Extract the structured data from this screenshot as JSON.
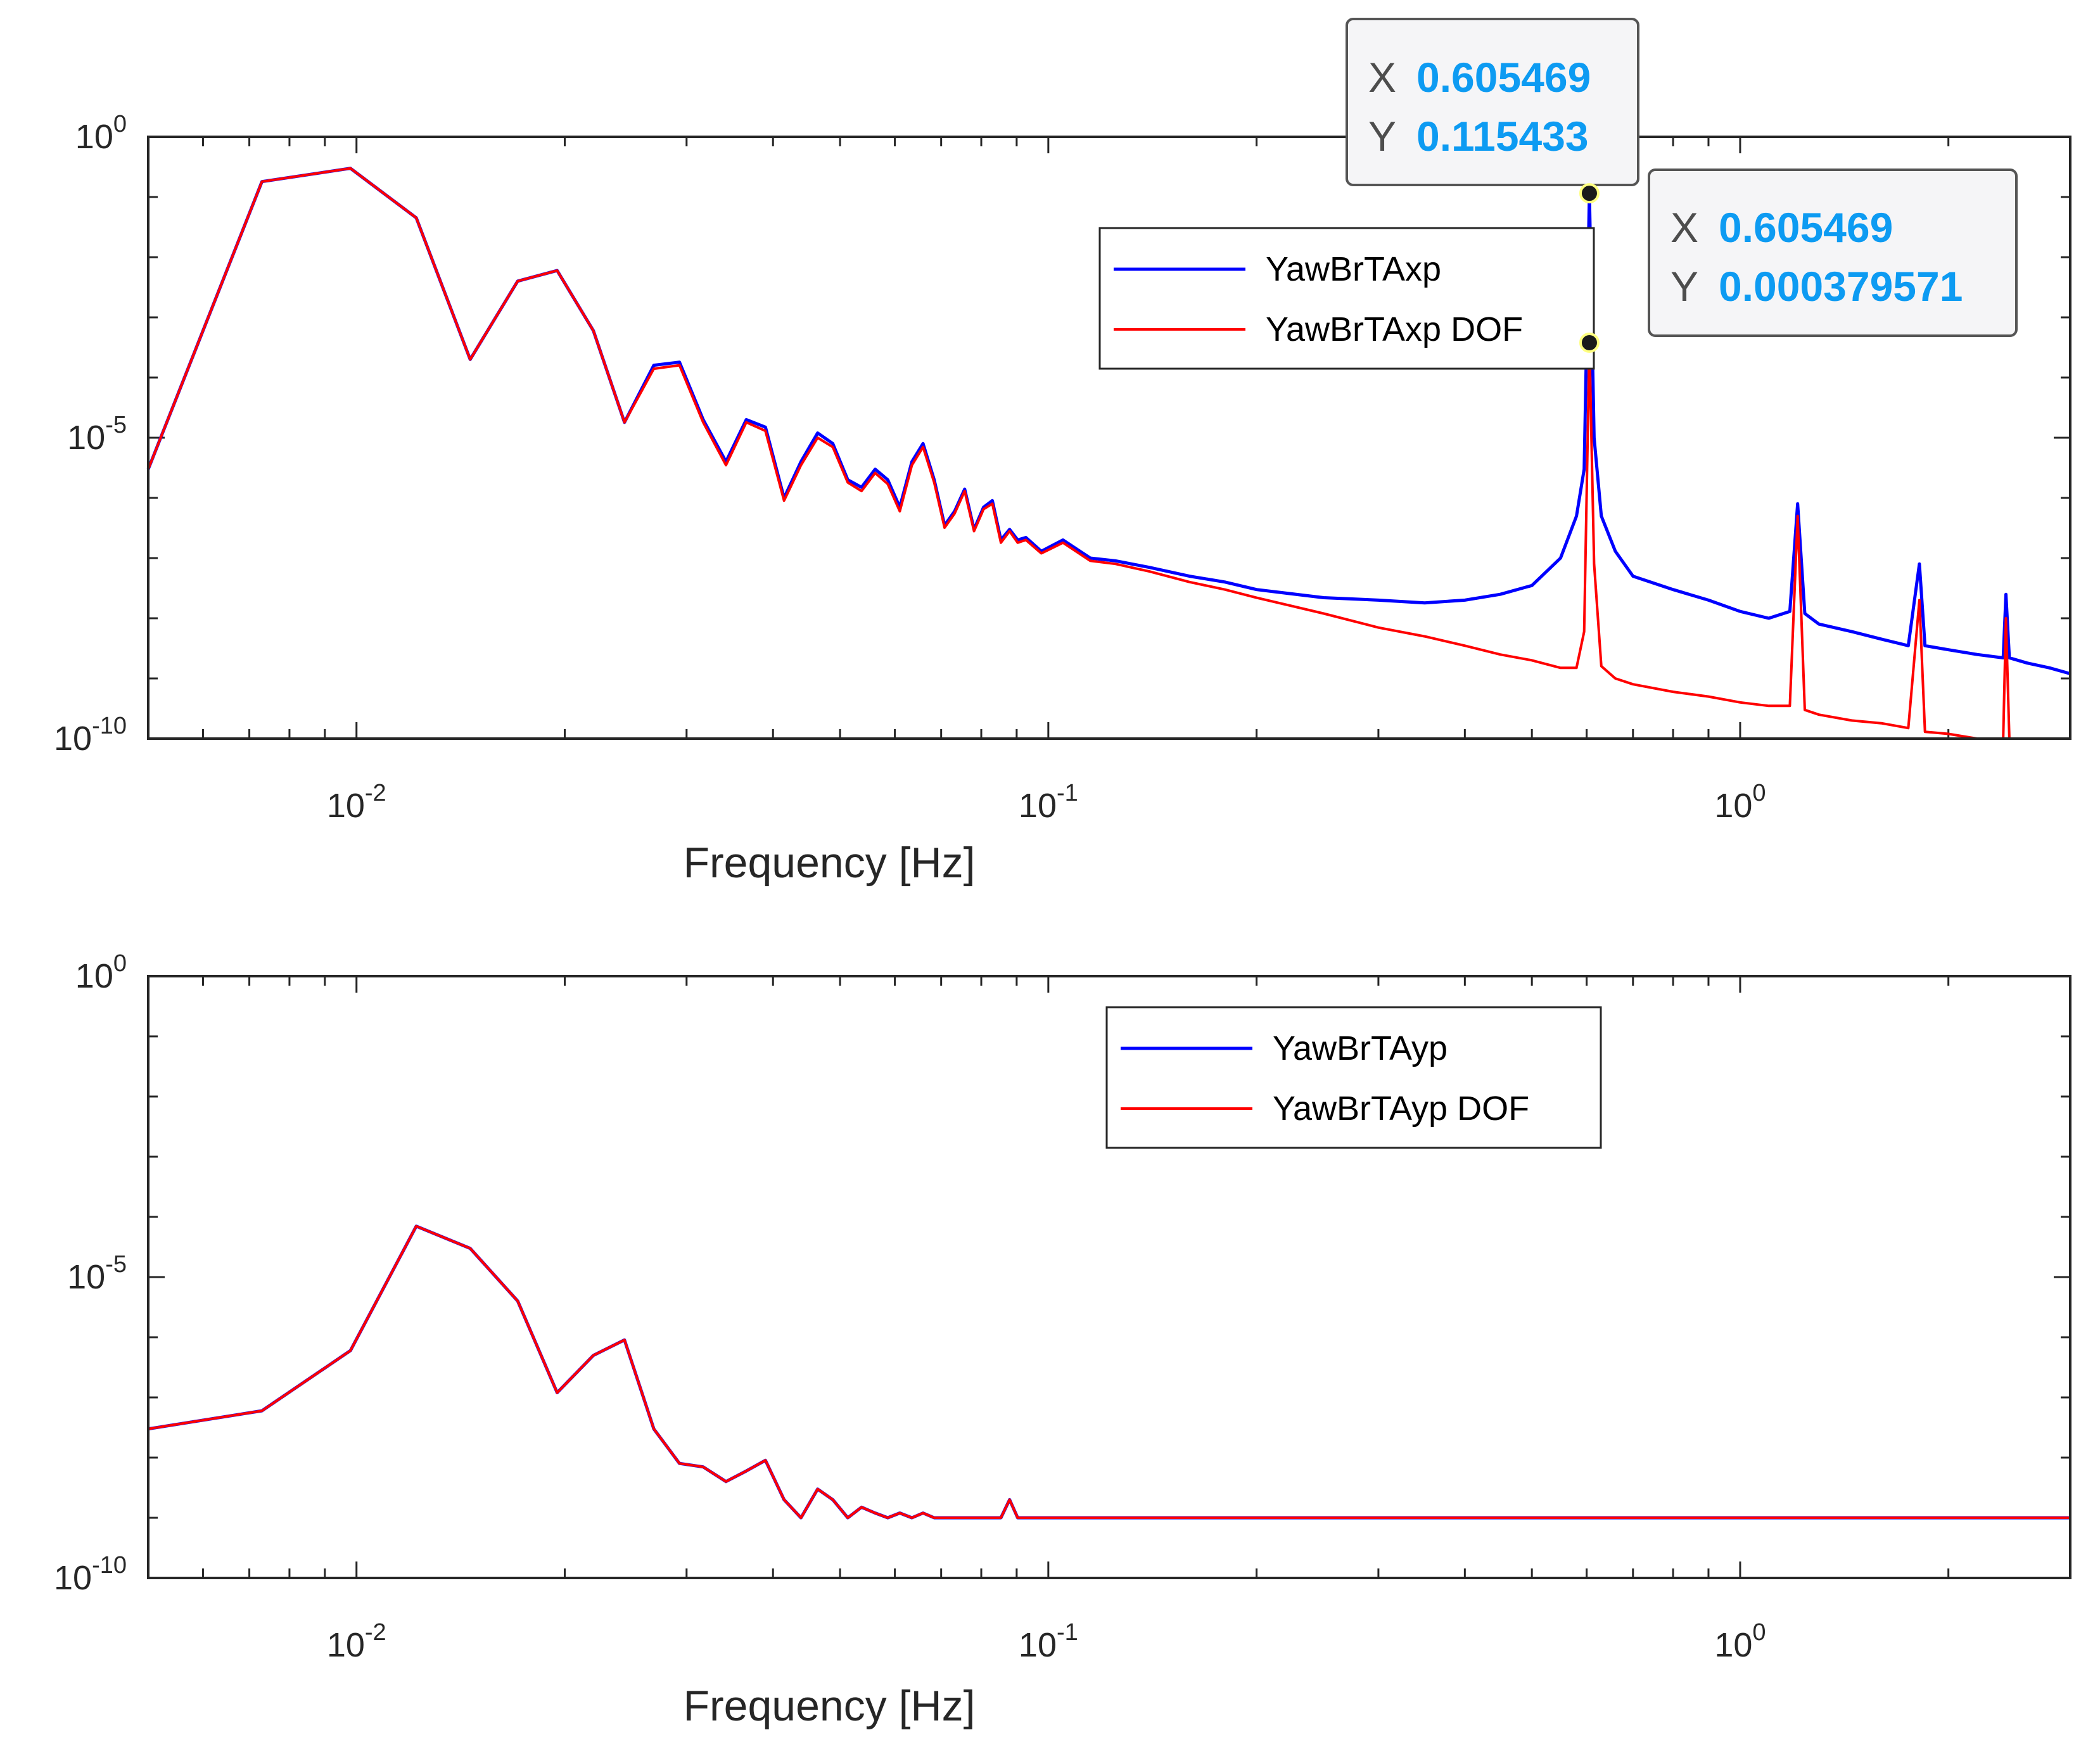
{
  "chart_data": [
    {
      "type": "line",
      "xscale": "log",
      "yscale": "log",
      "xlim": [
        0.005,
        3.0
      ],
      "ylim": [
        1e-10,
        1
      ],
      "xlabel": "Frequency [Hz]",
      "ylabel": "",
      "x_ticks": [
        {
          "value": 0.01,
          "base": "10",
          "exp": "-2"
        },
        {
          "value": 0.1,
          "base": "10",
          "exp": "-1"
        },
        {
          "value": 1,
          "base": "10",
          "exp": "0"
        }
      ],
      "y_ticks": [
        {
          "value": 1,
          "base": "10",
          "exp": "0"
        },
        {
          "value": 1e-05,
          "base": "10",
          "exp": "-5"
        },
        {
          "value": 1e-10,
          "base": "10",
          "exp": "-10"
        }
      ],
      "legend_position": "upper-right",
      "series": [
        {
          "name": "YawBrTAxp",
          "color": "#0000ff",
          "x": [
            0.005,
            0.0073,
            0.0098,
            0.0122,
            0.0146,
            0.0171,
            0.0195,
            0.022,
            0.0244,
            0.0269,
            0.0293,
            0.0317,
            0.0342,
            0.0366,
            0.039,
            0.0415,
            0.0439,
            0.0464,
            0.0488,
            0.0513,
            0.0537,
            0.0562,
            0.0586,
            0.061,
            0.0635,
            0.0659,
            0.0684,
            0.0708,
            0.0732,
            0.0757,
            0.0781,
            0.0806,
            0.083,
            0.0854,
            0.0879,
            0.0903,
            0.0928,
            0.0977,
            0.105,
            0.115,
            0.125,
            0.14,
            0.16,
            0.18,
            0.2,
            0.25,
            0.3,
            0.35,
            0.4,
            0.45,
            0.5,
            0.55,
            0.58,
            0.595,
            0.605469,
            0.615,
            0.63,
            0.66,
            0.7,
            0.8,
            0.9,
            1.0,
            1.1,
            1.18,
            1.211,
            1.24,
            1.3,
            1.45,
            1.6,
            1.75,
            1.816,
            1.85,
            2.0,
            2.2,
            2.4,
            2.422,
            2.45,
            2.6,
            2.8,
            3.0
          ],
          "y": [
            3e-06,
            0.18,
            0.3,
            0.045,
            0.0002,
            0.004,
            0.006,
            0.0006,
            1.8e-05,
            0.00016,
            0.00018,
            2e-05,
            4e-06,
            2e-05,
            1.5e-05,
            1e-06,
            4e-06,
            1.2e-05,
            8e-06,
            2e-06,
            1.5e-06,
            3e-06,
            2e-06,
            7e-07,
            4e-06,
            8e-06,
            2e-06,
            3.5e-07,
            6e-07,
            1.4e-06,
            3e-07,
            7e-07,
            9e-07,
            2e-07,
            3e-07,
            2e-07,
            2.2e-07,
            1.3e-07,
            2e-07,
            1e-07,
            9e-08,
            7e-08,
            5e-08,
            4e-08,
            3e-08,
            2.2e-08,
            2e-08,
            1.8e-08,
            2e-08,
            2.5e-08,
            3.5e-08,
            1e-07,
            5e-07,
            3e-06,
            0.115433,
            1e-05,
            5e-07,
            1.3e-07,
            5e-08,
            3e-08,
            2e-08,
            1.3e-08,
            1e-08,
            1.3e-08,
            8e-07,
            1.2e-08,
            8e-09,
            6e-09,
            4.5e-09,
            3.5e-09,
            8e-08,
            3.5e-09,
            3e-09,
            2.5e-09,
            2.2e-09,
            2.5e-08,
            2.2e-09,
            1.8e-09,
            1.5e-09,
            1.2e-09
          ]
        },
        {
          "name": "YawBrTAxp DOF",
          "color": "#ff0000",
          "x": [
            0.005,
            0.0073,
            0.0098,
            0.0122,
            0.0146,
            0.0171,
            0.0195,
            0.022,
            0.0244,
            0.0269,
            0.0293,
            0.0317,
            0.0342,
            0.0366,
            0.039,
            0.0415,
            0.0439,
            0.0464,
            0.0488,
            0.0513,
            0.0537,
            0.0562,
            0.0586,
            0.061,
            0.0635,
            0.0659,
            0.0684,
            0.0708,
            0.0732,
            0.0757,
            0.0781,
            0.0806,
            0.083,
            0.0854,
            0.0879,
            0.0903,
            0.0928,
            0.0977,
            0.105,
            0.115,
            0.125,
            0.14,
            0.16,
            0.18,
            0.2,
            0.25,
            0.3,
            0.35,
            0.4,
            0.45,
            0.5,
            0.55,
            0.58,
            0.595,
            0.605469,
            0.615,
            0.63,
            0.66,
            0.7,
            0.8,
            0.9,
            1.0,
            1.1,
            1.18,
            1.211,
            1.24,
            1.3,
            1.45,
            1.6,
            1.75,
            1.816,
            1.85,
            2.0,
            2.2,
            2.4,
            2.422,
            2.45,
            2.6,
            2.8,
            3.0
          ],
          "y": [
            3e-06,
            0.18,
            0.3,
            0.045,
            0.0002,
            0.004,
            0.006,
            0.0006,
            1.8e-05,
            0.00014,
            0.00016,
            1.8e-05,
            3.5e-06,
            1.8e-05,
            1.3e-05,
            9e-07,
            3.5e-06,
            1e-05,
            7e-06,
            1.8e-06,
            1.3e-06,
            2.6e-06,
            1.7e-06,
            6e-07,
            3.5e-06,
            7e-06,
            1.8e-06,
            3.2e-07,
            5.5e-07,
            1.3e-06,
            2.8e-07,
            6.5e-07,
            8e-07,
            1.8e-07,
            2.8e-07,
            1.8e-07,
            2e-07,
            1.2e-07,
            1.8e-07,
            9e-08,
            8e-08,
            6e-08,
            4e-08,
            3e-08,
            2.2e-08,
            1.2e-08,
            7e-09,
            5e-09,
            3.5e-09,
            2.5e-09,
            2e-09,
            1.5e-09,
            1.5e-09,
            6e-09,
            0.000379571,
            8e-08,
            1.6e-09,
            1e-09,
            8e-10,
            6e-10,
            5e-10,
            4e-10,
            3.5e-10,
            3.5e-10,
            5e-07,
            3e-10,
            2.5e-10,
            2e-10,
            1.8e-10,
            1.5e-10,
            2e-08,
            1.3e-10,
            1.2e-10,
            1e-10,
            9e-11,
            1e-08,
            9e-11,
            8e-11,
            7e-11,
            6e-11
          ]
        }
      ],
      "datatips": [
        {
          "x_label": "X",
          "x_value": "0.605469",
          "y_label": "Y",
          "y_value": "0.115433",
          "x": 0.605469,
          "y": 0.115433
        },
        {
          "x_label": "X",
          "x_value": "0.605469",
          "y_label": "Y",
          "y_value": "0.000379571",
          "x": 0.605469,
          "y": 0.000379571
        }
      ]
    },
    {
      "type": "line",
      "xscale": "log",
      "yscale": "log",
      "xlim": [
        0.005,
        3.0
      ],
      "ylim": [
        1e-10,
        1
      ],
      "xlabel": "Frequency [Hz]",
      "ylabel": "",
      "x_ticks": [
        {
          "value": 0.01,
          "base": "10",
          "exp": "-2"
        },
        {
          "value": 0.1,
          "base": "10",
          "exp": "-1"
        },
        {
          "value": 1,
          "base": "10",
          "exp": "0"
        }
      ],
      "y_ticks": [
        {
          "value": 1,
          "base": "10",
          "exp": "0"
        },
        {
          "value": 1e-05,
          "base": "10",
          "exp": "-5"
        },
        {
          "value": 1e-10,
          "base": "10",
          "exp": "-10"
        }
      ],
      "legend_position": "upper-right",
      "series": [
        {
          "name": "YawBrTAyp",
          "color": "#0000ff",
          "x": [
            0.005,
            0.0073,
            0.0098,
            0.0122,
            0.0146,
            0.0171,
            0.0195,
            0.022,
            0.0244,
            0.0269,
            0.0293,
            0.0317,
            0.0342,
            0.0366,
            0.039,
            0.0415,
            0.0439,
            0.0464,
            0.0488,
            0.0513,
            0.0537,
            0.0562,
            0.0586,
            0.061,
            0.0635,
            0.0659,
            0.0684,
            0.0708,
            0.0732,
            0.0757,
            0.0781,
            0.0806,
            0.083,
            0.0854,
            0.0879,
            0.0903,
            0.095,
            0.1,
            0.11,
            0.12,
            0.13,
            0.14,
            0.16,
            0.18,
            0.2,
            0.25,
            0.3,
            0.35,
            0.4,
            0.45,
            0.5,
            0.55,
            0.58,
            0.595,
            0.605469,
            0.615,
            0.63,
            0.66,
            0.7,
            0.8,
            0.9,
            1.0,
            1.1,
            1.18,
            1.211,
            1.24,
            1.27,
            1.3,
            1.33,
            1.45,
            1.6,
            1.75,
            1.816,
            1.85,
            2.0,
            2.2,
            2.4,
            2.6,
            2.8,
            3.0
          ],
          "y": [
            3e-08,
            6e-08,
            6e-07,
            7e-05,
            3e-05,
            4e-06,
            1.2e-07,
            5e-07,
            9e-07,
            3e-08,
            8e-09,
            7e-09,
            4e-09,
            6e-09,
            9e-09,
            2e-09,
            1e-09,
            3e-09,
            2e-09,
            1e-09,
            1.5e-09,
            1.2e-09,
            1e-09,
            1.2e-09,
            1e-09,
            1.2e-09,
            1e-09,
            1e-09,
            1e-09,
            1e-09,
            1e-09,
            1e-09,
            1e-09,
            1e-09,
            2e-09,
            1e-09,
            1e-09,
            1e-09,
            1e-09,
            1e-09,
            1e-09,
            1e-09,
            1e-09,
            1e-09,
            1e-09,
            1e-09,
            1e-09,
            1e-09,
            1e-09,
            1e-09,
            1e-09,
            1e-09,
            1e-09,
            1e-09,
            1e-09,
            1e-09,
            1e-09,
            1e-09,
            1e-09,
            1e-09,
            1e-09,
            1e-09,
            1e-09,
            1e-09,
            1e-09,
            1e-09,
            1e-09,
            1e-09,
            1e-09,
            1e-09,
            1e-09,
            1e-09,
            1e-09,
            1e-09,
            1e-09,
            1e-09,
            1e-09,
            1e-09,
            1e-09,
            1e-09
          ]
        },
        {
          "name": "YawBrTAyp DOF",
          "color": "#ff0000",
          "x": [
            0.005,
            0.0073,
            0.0098,
            0.0122,
            0.0146,
            0.0171,
            0.0195,
            0.022,
            0.0244,
            0.0269,
            0.0293,
            0.0317,
            0.0342,
            0.0366,
            0.039,
            0.0415,
            0.0439,
            0.0464,
            0.0488,
            0.0513,
            0.0537,
            0.0562,
            0.0586,
            0.061,
            0.0635,
            0.0659,
            0.0684,
            0.0708,
            0.0732,
            0.0757,
            0.0781,
            0.0806,
            0.083,
            0.0854,
            0.0879,
            0.0903,
            0.095,
            0.1,
            0.11,
            0.12,
            0.13,
            0.14,
            0.16,
            0.18,
            0.2,
            0.25,
            0.3,
            0.35,
            0.4,
            0.45,
            0.5,
            0.55,
            0.58,
            0.595,
            0.605469,
            0.615,
            0.63,
            0.66,
            0.7,
            0.8,
            0.9,
            1.0,
            1.1,
            1.18,
            1.211,
            1.24,
            1.27,
            1.3,
            1.33,
            1.45,
            1.6,
            1.75,
            1.816,
            1.85,
            2.0,
            2.2,
            2.4,
            2.6,
            2.8,
            3.0
          ],
          "y": [
            3e-08,
            6e-08,
            6e-07,
            7e-05,
            3e-05,
            4e-06,
            1.2e-07,
            5e-07,
            9e-07,
            3e-08,
            8e-09,
            7e-09,
            4e-09,
            6e-09,
            9e-09,
            2e-09,
            1e-09,
            3e-09,
            2e-09,
            1e-09,
            1.5e-09,
            1.2e-09,
            1e-09,
            1.2e-09,
            1e-09,
            1.2e-09,
            1e-09,
            1e-09,
            1e-09,
            1e-09,
            1e-09,
            1e-09,
            1e-09,
            1e-09,
            2e-09,
            1e-09,
            1e-09,
            1e-09,
            1e-09,
            1e-09,
            1e-09,
            1e-09,
            1e-09,
            1e-09,
            1e-09,
            1e-09,
            1e-09,
            1e-09,
            1e-09,
            1e-09,
            1e-09,
            1e-09,
            1e-09,
            1e-09,
            1e-09,
            1e-09,
            1e-09,
            1e-09,
            1e-09,
            1e-09,
            1e-09,
            1e-09,
            1e-09,
            1e-09,
            1e-09,
            1e-09,
            1e-09,
            1e-09,
            1e-09,
            1e-09,
            1e-09,
            1e-09,
            1e-09,
            1e-09,
            1e-09,
            1e-09,
            1e-09,
            1e-09,
            1e-09,
            1e-09
          ]
        }
      ]
    }
  ]
}
